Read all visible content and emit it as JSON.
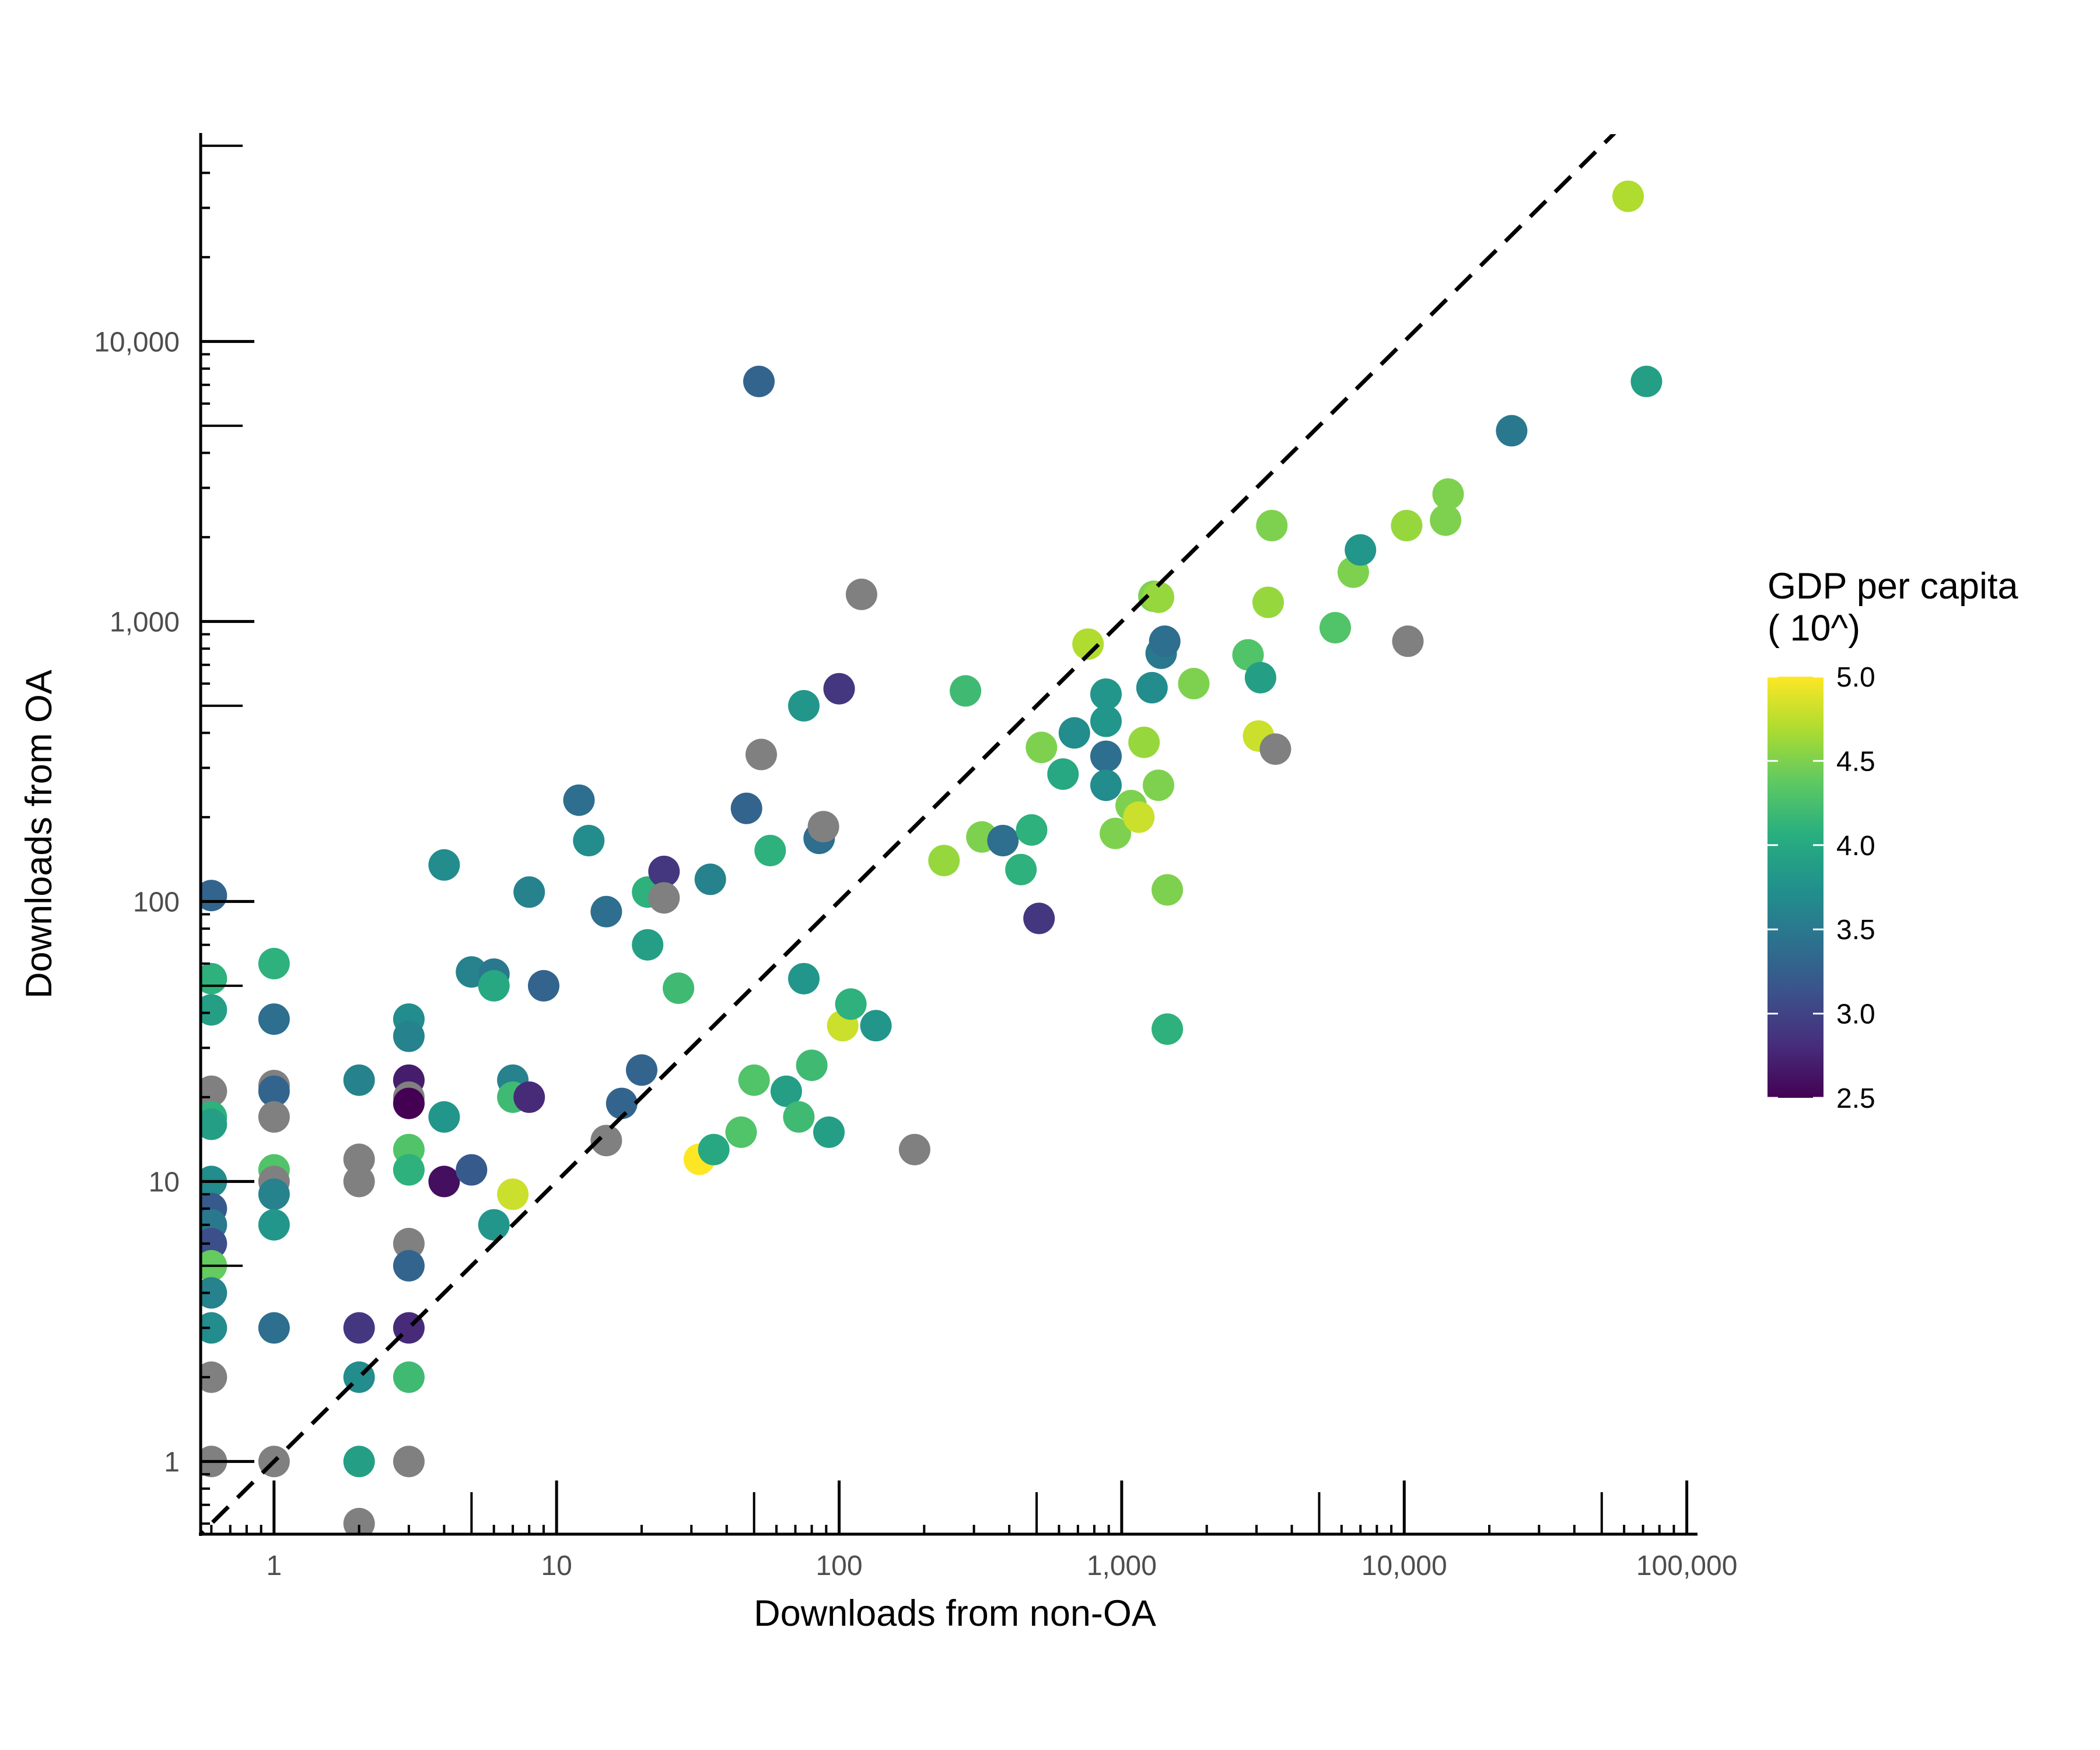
{
  "chart_data": {
    "type": "scatter",
    "title": "",
    "xlabel": "Downloads from non-OA",
    "ylabel": "Downloads from OA",
    "x_scale": "log10",
    "y_scale": "log10",
    "xlim": [
      0.55,
      120000
    ],
    "ylim": [
      0.55,
      55000
    ],
    "x_ticks": [
      1,
      10,
      100,
      1000,
      10000,
      100000
    ],
    "x_tick_labels": [
      "1",
      "10",
      "100",
      "1,000",
      "10,000",
      "100,000"
    ],
    "y_ticks": [
      1,
      10,
      100,
      1000,
      10000
    ],
    "y_tick_labels": [
      "1",
      "10",
      "100",
      "1,000",
      "10,000"
    ],
    "reference_line": "y = x (dashed)",
    "grid": false,
    "legend": {
      "position": "right",
      "title_lines": [
        "GDP per capita",
        "( 10^)"
      ],
      "colorscale": "viridis",
      "range": [
        2.5,
        5.0
      ],
      "ticks": [
        5.0,
        4.5,
        4.0,
        3.5,
        3.0,
        2.5
      ],
      "tick_labels": [
        "5.0",
        "4.5",
        "4.0",
        "3.5",
        "3.0",
        "2.5"
      ],
      "na_color": "#808080"
    },
    "points": [
      {
        "x": 0.6,
        "y": 105,
        "g": 3.3
      },
      {
        "x": 0.6,
        "y": 53,
        "g": 4.1
      },
      {
        "x": 0.6,
        "y": 41,
        "g": 3.9
      },
      {
        "x": 0.6,
        "y": 21,
        "g": null
      },
      {
        "x": 0.6,
        "y": 17,
        "g": 4.1
      },
      {
        "x": 0.6,
        "y": 16,
        "g": 3.9
      },
      {
        "x": 0.6,
        "y": 10,
        "g": 3.7
      },
      {
        "x": 0.6,
        "y": 8,
        "g": 3.2
      },
      {
        "x": 0.6,
        "y": 7,
        "g": 3.5
      },
      {
        "x": 0.6,
        "y": 6,
        "g": 3.1
      },
      {
        "x": 0.6,
        "y": 5,
        "g": 4.4
      },
      {
        "x": 0.6,
        "y": 4,
        "g": 3.6
      },
      {
        "x": 0.6,
        "y": 3,
        "g": 3.7
      },
      {
        "x": 0.6,
        "y": 2,
        "g": null
      },
      {
        "x": 0.6,
        "y": 1,
        "g": null
      },
      {
        "x": 1,
        "y": 60,
        "g": 4.1
      },
      {
        "x": 1,
        "y": 38,
        "g": 3.4
      },
      {
        "x": 1,
        "y": 22,
        "g": null
      },
      {
        "x": 1,
        "y": 21,
        "g": 3.3
      },
      {
        "x": 1,
        "y": 17,
        "g": null
      },
      {
        "x": 1,
        "y": 11,
        "g": 4.3
      },
      {
        "x": 1,
        "y": 10,
        "g": null
      },
      {
        "x": 1,
        "y": 9,
        "g": 3.6
      },
      {
        "x": 1,
        "y": 7,
        "g": 3.8
      },
      {
        "x": 1,
        "y": 3,
        "g": 3.4
      },
      {
        "x": 1,
        "y": 1,
        "g": null
      },
      {
        "x": 2,
        "y": 23,
        "g": 3.6
      },
      {
        "x": 2,
        "y": 12,
        "g": null
      },
      {
        "x": 2,
        "y": 10,
        "g": null
      },
      {
        "x": 2,
        "y": 3,
        "g": 2.9
      },
      {
        "x": 2,
        "y": 2,
        "g": 3.7
      },
      {
        "x": 2,
        "y": 1,
        "g": 3.9
      },
      {
        "x": 2,
        "y": 0.6,
        "g": null
      },
      {
        "x": 3,
        "y": 38,
        "g": 3.7
      },
      {
        "x": 3,
        "y": 33,
        "g": 3.6
      },
      {
        "x": 3,
        "y": 23,
        "g": 2.7
      },
      {
        "x": 3,
        "y": 20,
        "g": null
      },
      {
        "x": 3,
        "y": 19,
        "g": 2.5
      },
      {
        "x": 3,
        "y": 13,
        "g": 4.3
      },
      {
        "x": 3,
        "y": 11,
        "g": 4.1
      },
      {
        "x": 3,
        "y": 6,
        "g": null
      },
      {
        "x": 3,
        "y": 5,
        "g": 3.3
      },
      {
        "x": 3,
        "y": 3,
        "g": 2.8
      },
      {
        "x": 3,
        "y": 2,
        "g": 4.2
      },
      {
        "x": 3,
        "y": 1,
        "g": null
      },
      {
        "x": 4,
        "y": 135,
        "g": 3.7
      },
      {
        "x": 4,
        "y": 17,
        "g": 3.8
      },
      {
        "x": 4,
        "y": 10,
        "g": 2.6
      },
      {
        "x": 5,
        "y": 56,
        "g": 3.6
      },
      {
        "x": 5,
        "y": 11,
        "g": 3.2
      },
      {
        "x": 6,
        "y": 55,
        "g": 3.5
      },
      {
        "x": 6,
        "y": 50,
        "g": 4.0
      },
      {
        "x": 6,
        "y": 7,
        "g": 3.8
      },
      {
        "x": 7,
        "y": 23,
        "g": 3.6
      },
      {
        "x": 7,
        "y": 20,
        "g": 4.2
      },
      {
        "x": 7,
        "y": 9,
        "g": 4.8
      },
      {
        "x": 8,
        "y": 108,
        "g": 3.6
      },
      {
        "x": 8,
        "y": 20,
        "g": 2.8
      },
      {
        "x": 9,
        "y": 50,
        "g": 3.3
      },
      {
        "x": 12,
        "y": 230,
        "g": 3.4
      },
      {
        "x": 13,
        "y": 165,
        "g": 3.7
      },
      {
        "x": 15,
        "y": 92,
        "g": 3.4
      },
      {
        "x": 15,
        "y": 14,
        "g": null
      },
      {
        "x": 17,
        "y": 19,
        "g": 3.3
      },
      {
        "x": 20,
        "y": 25,
        "g": 3.3
      },
      {
        "x": 21,
        "y": 108,
        "g": 4.1
      },
      {
        "x": 21,
        "y": 70,
        "g": 3.9
      },
      {
        "x": 24,
        "y": 128,
        "g": 2.9
      },
      {
        "x": 24,
        "y": 103,
        "g": null
      },
      {
        "x": 27,
        "y": 49,
        "g": 4.2
      },
      {
        "x": 32,
        "y": 12,
        "g": 5.0
      },
      {
        "x": 35,
        "y": 120,
        "g": 3.6
      },
      {
        "x": 36,
        "y": 13,
        "g": 4.0
      },
      {
        "x": 45,
        "y": 15,
        "g": 4.3
      },
      {
        "x": 47,
        "y": 215,
        "g": 3.3
      },
      {
        "x": 50,
        "y": 23,
        "g": 4.3
      },
      {
        "x": 52,
        "y": 7200,
        "g": 3.3
      },
      {
        "x": 53,
        "y": 335,
        "g": null
      },
      {
        "x": 57,
        "y": 152,
        "g": 4.1
      },
      {
        "x": 65,
        "y": 21,
        "g": 3.9
      },
      {
        "x": 72,
        "y": 17,
        "g": 4.2
      },
      {
        "x": 75,
        "y": 500,
        "g": 3.8
      },
      {
        "x": 75,
        "y": 53,
        "g": 3.8
      },
      {
        "x": 80,
        "y": 26,
        "g": 4.2
      },
      {
        "x": 85,
        "y": 168,
        "g": 3.4
      },
      {
        "x": 88,
        "y": 185,
        "g": null
      },
      {
        "x": 92,
        "y": 15,
        "g": 3.9
      },
      {
        "x": 100,
        "y": 575,
        "g": 2.9
      },
      {
        "x": 103,
        "y": 36,
        "g": 4.8
      },
      {
        "x": 110,
        "y": 43,
        "g": 4.1
      },
      {
        "x": 120,
        "y": 1250,
        "g": null
      },
      {
        "x": 135,
        "y": 36,
        "g": 3.8
      },
      {
        "x": 185,
        "y": 13,
        "g": null
      },
      {
        "x": 235,
        "y": 140,
        "g": 4.6
      },
      {
        "x": 280,
        "y": 565,
        "g": 4.2
      },
      {
        "x": 320,
        "y": 170,
        "g": 4.5
      },
      {
        "x": 380,
        "y": 165,
        "g": 3.4
      },
      {
        "x": 440,
        "y": 130,
        "g": 4.1
      },
      {
        "x": 480,
        "y": 180,
        "g": 4.1
      },
      {
        "x": 510,
        "y": 87,
        "g": 2.9
      },
      {
        "x": 520,
        "y": 355,
        "g": 4.5
      },
      {
        "x": 620,
        "y": 285,
        "g": 4.0
      },
      {
        "x": 680,
        "y": 400,
        "g": 3.7
      },
      {
        "x": 760,
        "y": 830,
        "g": 4.7
      },
      {
        "x": 880,
        "y": 550,
        "g": 3.8
      },
      {
        "x": 880,
        "y": 440,
        "g": 3.8
      },
      {
        "x": 880,
        "y": 330,
        "g": 3.4
      },
      {
        "x": 880,
        "y": 260,
        "g": 3.7
      },
      {
        "x": 950,
        "y": 175,
        "g": 4.5
      },
      {
        "x": 1080,
        "y": 220,
        "g": 4.5
      },
      {
        "x": 1150,
        "y": 200,
        "g": 4.8
      },
      {
        "x": 1200,
        "y": 370,
        "g": 4.6
      },
      {
        "x": 1280,
        "y": 580,
        "g": 3.7
      },
      {
        "x": 1300,
        "y": 1230,
        "g": 4.5
      },
      {
        "x": 1350,
        "y": 1220,
        "g": 4.6
      },
      {
        "x": 1350,
        "y": 260,
        "g": 4.5
      },
      {
        "x": 1380,
        "y": 770,
        "g": 3.5
      },
      {
        "x": 1420,
        "y": 850,
        "g": 3.4
      },
      {
        "x": 1450,
        "y": 110,
        "g": 4.5
      },
      {
        "x": 1450,
        "y": 35,
        "g": 4.1
      },
      {
        "x": 1800,
        "y": 600,
        "g": 4.5
      },
      {
        "x": 2800,
        "y": 760,
        "g": 4.3
      },
      {
        "x": 3050,
        "y": 390,
        "g": 4.8
      },
      {
        "x": 3100,
        "y": 630,
        "g": 3.9
      },
      {
        "x": 3300,
        "y": 1170,
        "g": 4.6
      },
      {
        "x": 3400,
        "y": 2200,
        "g": 4.5
      },
      {
        "x": 3500,
        "y": 350,
        "g": null
      },
      {
        "x": 5700,
        "y": 950,
        "g": 4.3
      },
      {
        "x": 6600,
        "y": 1500,
        "g": 4.5
      },
      {
        "x": 7000,
        "y": 1800,
        "g": 3.8
      },
      {
        "x": 10200,
        "y": 2200,
        "g": 4.6
      },
      {
        "x": 10300,
        "y": 850,
        "g": null
      },
      {
        "x": 14000,
        "y": 2300,
        "g": 4.5
      },
      {
        "x": 14300,
        "y": 2850,
        "g": 4.5
      },
      {
        "x": 24000,
        "y": 4800,
        "g": 3.5
      },
      {
        "x": 62000,
        "y": 33000,
        "g": 4.7
      },
      {
        "x": 72000,
        "y": 7200,
        "g": 3.9
      }
    ]
  }
}
